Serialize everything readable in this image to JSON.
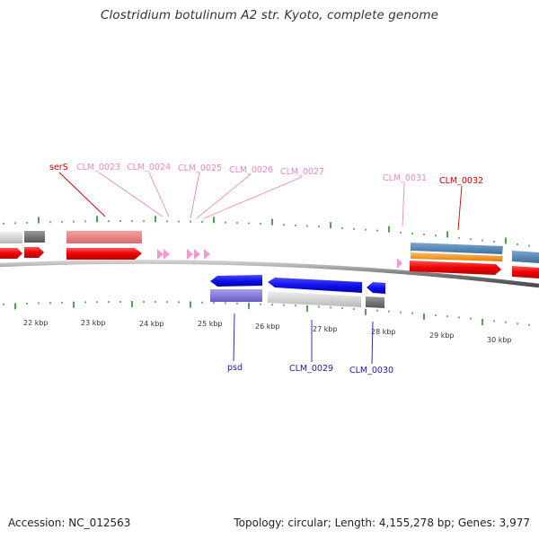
{
  "title": "Clostridium botulinum A2 str. Kyoto, complete genome",
  "footer": {
    "accession": "Accession: NC_012563",
    "stats": "Topology: circular; Length: 4,155,278 bp; Genes: 3,977"
  },
  "scale_labels": [
    "22 kbp",
    "23 kbp",
    "24 kbp",
    "25 kbp",
    "26 kbp",
    "27 kbp",
    "28 kbp",
    "29 kbp",
    "30 kbp"
  ],
  "forward_labels": [
    "serS",
    "CLM_0023",
    "CLM_0024",
    "CLM_0025",
    "CLM_0026",
    "CLM_0027",
    "CLM_0031",
    "CLM_0032"
  ],
  "reverse_labels": [
    "psd",
    "CLM_0029",
    "CLM_0030"
  ],
  "colors": {
    "forward_gene": "#ee1111",
    "forward_label": "#cc0000",
    "hypothetical_label": "#ee88bb",
    "reverse_gene": "#1a1add",
    "reverse_label": "#1a1aaa",
    "tick": "#1f7a1f",
    "backbone": "#777777"
  }
}
